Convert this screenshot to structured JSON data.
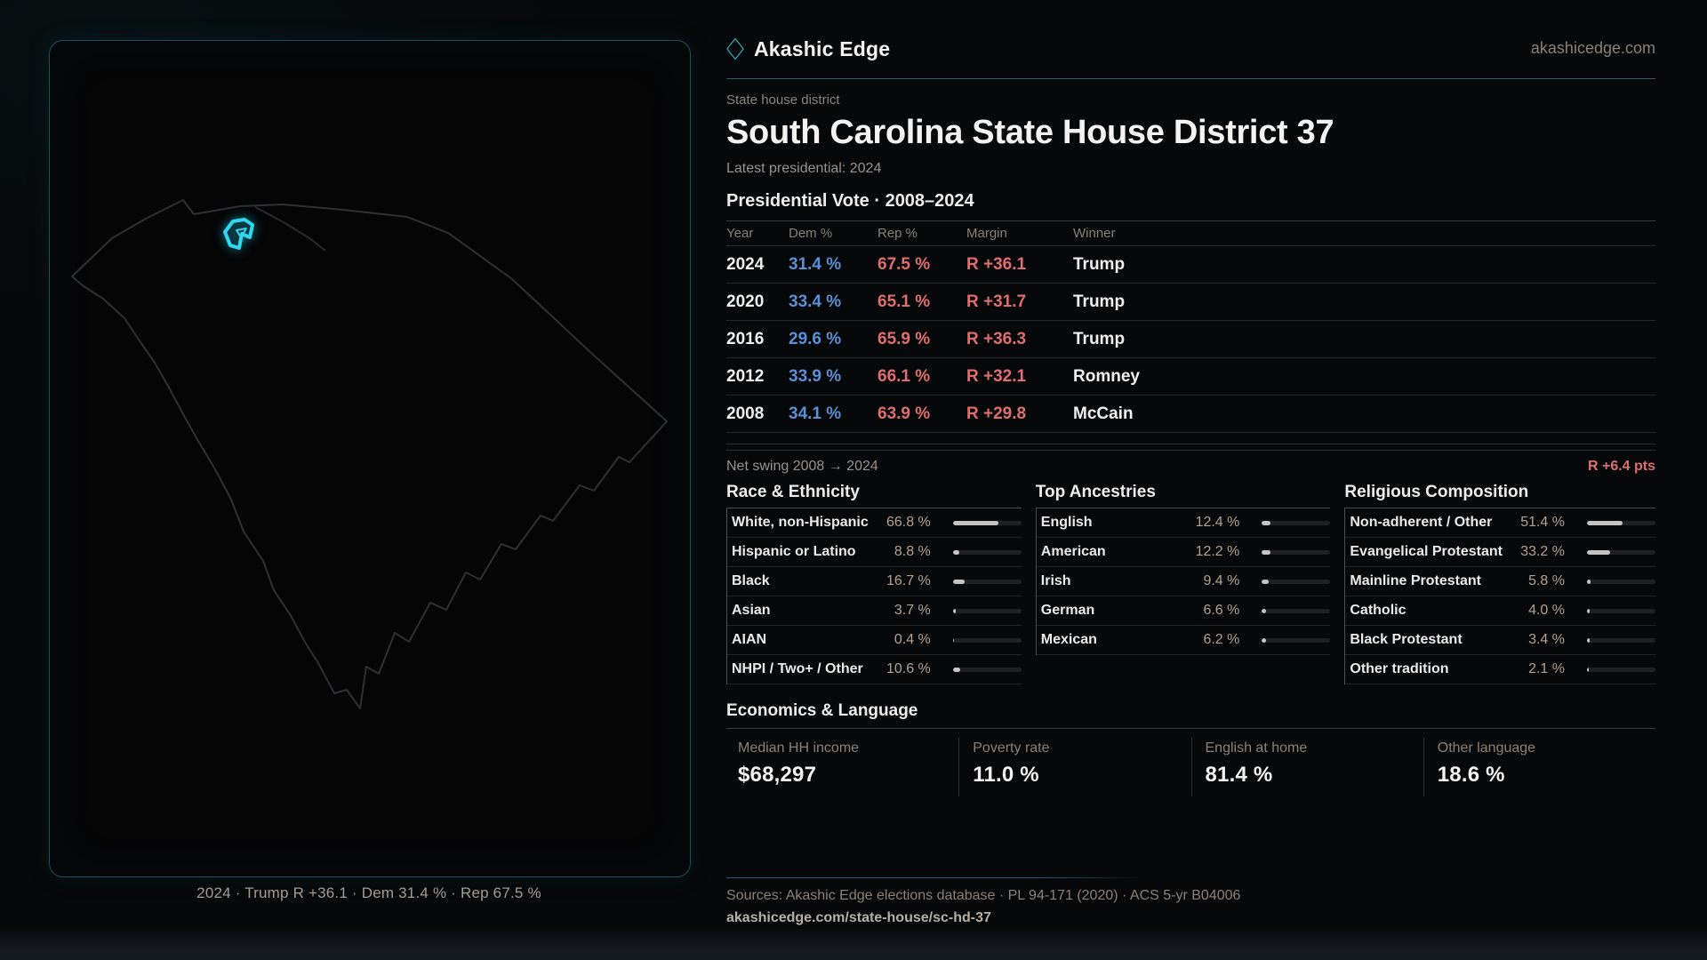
{
  "brand": {
    "name": "Akashic Edge",
    "domain": "akashicedge.com"
  },
  "header": {
    "kicker": "State house district",
    "title": "South Carolina State House District 37",
    "latest_line": "Latest presidential: 2024"
  },
  "vote_table": {
    "title": "Presidential Vote · 2008–2024",
    "columns": [
      "Year",
      "Dem %",
      "Rep %",
      "Margin",
      "Winner"
    ],
    "rows": [
      {
        "year": "2024",
        "dem": "31.4 %",
        "rep": "67.5 %",
        "margin": "R +36.1",
        "winner": "Trump"
      },
      {
        "year": "2020",
        "dem": "33.4 %",
        "rep": "65.1 %",
        "margin": "R +31.7",
        "winner": "Trump"
      },
      {
        "year": "2016",
        "dem": "29.6 %",
        "rep": "65.9 %",
        "margin": "R +36.3",
        "winner": "Trump"
      },
      {
        "year": "2012",
        "dem": "33.9 %",
        "rep": "66.1 %",
        "margin": "R +32.1",
        "winner": "Romney"
      },
      {
        "year": "2008",
        "dem": "34.1 %",
        "rep": "63.9 %",
        "margin": "R +29.8",
        "winner": "McCain"
      }
    ]
  },
  "net_swing": {
    "label": "Net swing 2008 → 2024",
    "value": "R +6.4 pts"
  },
  "demographics": {
    "groups": [
      {
        "title": "Race & Ethnicity",
        "rows": [
          {
            "label": "White, non-Hispanic",
            "value": "66.8 %",
            "pct": 66.8
          },
          {
            "label": "Hispanic or Latino",
            "value": "8.8 %",
            "pct": 8.8
          },
          {
            "label": "Black",
            "value": "16.7 %",
            "pct": 16.7
          },
          {
            "label": "Asian",
            "value": "3.7 %",
            "pct": 3.7
          },
          {
            "label": "AIAN",
            "value": "0.4 %",
            "pct": 0.4
          },
          {
            "label": "NHPI / Two+ / Other",
            "value": "10.6 %",
            "pct": 10.6
          }
        ]
      },
      {
        "title": "Top Ancestries",
        "rows": [
          {
            "label": "English",
            "value": "12.4 %",
            "pct": 12.4
          },
          {
            "label": "American",
            "value": "12.2 %",
            "pct": 12.2
          },
          {
            "label": "Irish",
            "value": "9.4 %",
            "pct": 9.4
          },
          {
            "label": "German",
            "value": "6.6 %",
            "pct": 6.6
          },
          {
            "label": "Mexican",
            "value": "6.2 %",
            "pct": 6.2
          }
        ]
      },
      {
        "title": "Religious Composition",
        "rows": [
          {
            "label": "Non-adherent / Other",
            "value": "51.4 %",
            "pct": 51.4
          },
          {
            "label": "Evangelical Protestant",
            "value": "33.2 %",
            "pct": 33.2
          },
          {
            "label": "Mainline Protestant",
            "value": "5.8 %",
            "pct": 5.8
          },
          {
            "label": "Catholic",
            "value": "4.0 %",
            "pct": 4.0
          },
          {
            "label": "Black Protestant",
            "value": "3.4 %",
            "pct": 3.4
          },
          {
            "label": "Other tradition",
            "value": "2.1 %",
            "pct": 2.1
          }
        ]
      }
    ]
  },
  "economics": {
    "title": "Economics & Language",
    "stats": [
      {
        "label": "Median HH income",
        "value": "$68,297"
      },
      {
        "label": "Poverty rate",
        "value": "11.0 %"
      },
      {
        "label": "English at home",
        "value": "81.4 %"
      },
      {
        "label": "Other language",
        "value": "18.6 %"
      }
    ]
  },
  "map": {
    "caption": "2024 · Trump R +36.1 · Dem 31.4 % · Rep 67.5 %"
  },
  "footer": {
    "sources": "Sources: Akashic Edge elections database · PL 94-171 (2020) · ACS 5-yr B04006",
    "link": "akashicedge.com/state-house/sc-hd-37"
  },
  "colors": {
    "accent_cyan": "#2bd0e8",
    "teal_border": "#1d525c",
    "dem_blue": "#5b90d8",
    "rep_red": "#e06e6e",
    "bar_fill": "#c6c4c2",
    "value_beige": "#b3a294"
  }
}
